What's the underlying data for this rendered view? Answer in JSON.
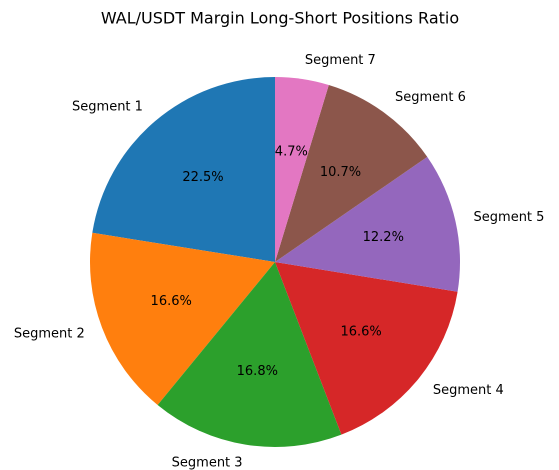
{
  "chart_data": {
    "type": "pie",
    "title": "WAL/USDT Margin Long-Short Positions Ratio",
    "categories": [
      "Segment 1",
      "Segment 2",
      "Segment 3",
      "Segment 4",
      "Segment 5",
      "Segment 6",
      "Segment 7"
    ],
    "values": [
      22.5,
      16.6,
      16.8,
      16.6,
      12.2,
      10.7,
      4.7
    ],
    "value_labels": [
      "22.5%",
      "16.6%",
      "16.8%",
      "16.6%",
      "12.2%",
      "10.7%",
      "4.7%"
    ],
    "colors": [
      "#1f77b4",
      "#ff7f0e",
      "#2ca02c",
      "#d62728",
      "#9467bd",
      "#8c564b",
      "#e377c2"
    ]
  }
}
